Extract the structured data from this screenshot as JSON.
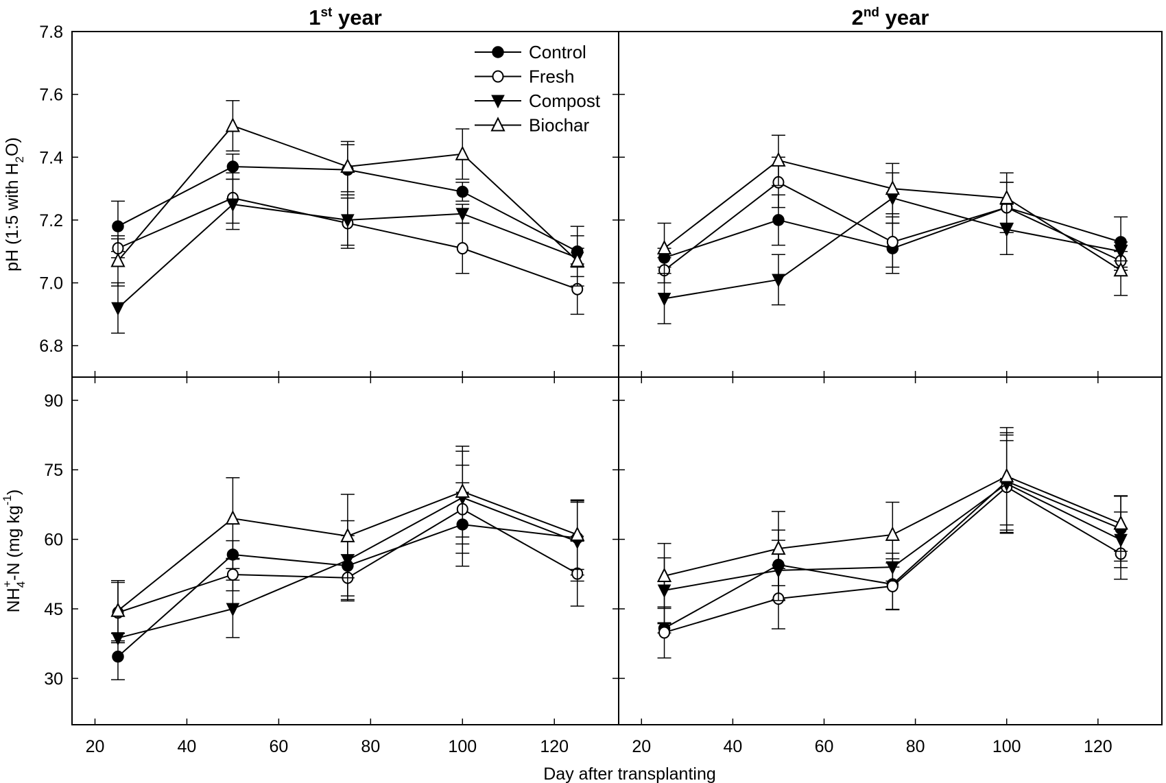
{
  "chart_data": {
    "type": "line",
    "legend": {
      "placement": "top-right of top-left panel",
      "entries": [
        "Control",
        "Fresh",
        "Compost",
        "Biochar"
      ]
    },
    "series_markers": {
      "Control": "filled-circle",
      "Fresh": "open-circle",
      "Compost": "filled-triangle-down",
      "Biochar": "open-triangle-up"
    },
    "xlabel": "Day after transplanting",
    "x": [
      25,
      50,
      75,
      100,
      125
    ],
    "xlim": [
      15,
      134
    ],
    "xticks": [
      20,
      40,
      60,
      80,
      100,
      120
    ],
    "grid": false,
    "column_titles": [
      {
        "main": "1",
        "sup": "st",
        "rest": " year"
      },
      {
        "main": "2",
        "sup": "nd",
        "rest": " year"
      }
    ],
    "rows": [
      {
        "ylabel": {
          "pre": "pH (1:5 with H",
          "sub": "2",
          "post": "O)"
        },
        "ylim": [
          6.7,
          7.8
        ],
        "yticks": [
          "6.8",
          "7.0",
          "7.2",
          "7.4",
          "7.6",
          "7.8"
        ],
        "panels": [
          {
            "column": "1st year",
            "series": [
              {
                "name": "Control",
                "values": [
                  7.18,
                  7.37,
                  7.36,
                  7.29,
                  7.1
                ],
                "err": [
                  0.08,
                  0.04,
                  0.08,
                  0.03,
                  0.08
                ]
              },
              {
                "name": "Fresh",
                "values": [
                  7.11,
                  7.27,
                  7.19,
                  7.11,
                  6.98
                ],
                "err": [
                  0.03,
                  0.08,
                  0.08,
                  0.08,
                  0.08
                ]
              },
              {
                "name": "Compost",
                "values": [
                  6.92,
                  7.25,
                  7.2,
                  7.22,
                  7.08
                ],
                "err": [
                  0.08,
                  0.08,
                  0.08,
                  0.03,
                  0.03
                ]
              },
              {
                "name": "Biochar",
                "values": [
                  7.07,
                  7.5,
                  7.37,
                  7.41,
                  7.07
                ],
                "err": [
                  0.08,
                  0.08,
                  0.08,
                  0.08,
                  0.08
                ]
              }
            ]
          },
          {
            "column": "2nd year",
            "series": [
              {
                "name": "Control",
                "values": [
                  7.08,
                  7.2,
                  7.11,
                  7.24,
                  7.13
                ],
                "err": [
                  0.03,
                  0.08,
                  0.08,
                  0.08,
                  0.08
                ]
              },
              {
                "name": "Fresh",
                "values": [
                  7.04,
                  7.32,
                  7.13,
                  7.24,
                  7.07
                ],
                "err": [
                  0.04,
                  0.08,
                  0.08,
                  0.08,
                  0.03
                ]
              },
              {
                "name": "Compost",
                "values": [
                  6.95,
                  7.01,
                  7.27,
                  7.17,
                  7.1
                ],
                "err": [
                  0.08,
                  0.08,
                  0.08,
                  0.08,
                  0.03
                ]
              },
              {
                "name": "Biochar",
                "values": [
                  7.11,
                  7.39,
                  7.3,
                  7.27,
                  7.04
                ],
                "err": [
                  0.08,
                  0.08,
                  0.08,
                  0.08,
                  0.08
                ]
              }
            ]
          }
        ]
      },
      {
        "ylabel": {
          "pre": "NH",
          "sub": "4",
          "sup": "+",
          "mid": "-N (mg kg",
          "sup2": "-1",
          "post": ")"
        },
        "ylim": [
          20,
          95
        ],
        "yticks": [
          "30",
          "45",
          "60",
          "75",
          "90"
        ],
        "panels": [
          {
            "column": "1st year",
            "series": [
              {
                "name": "Control",
                "values": [
                  34.7,
                  56.7,
                  54.3,
                  63.2,
                  60.3
                ],
                "err": [
                  5.0,
                  3.0,
                  6.5,
                  9.0,
                  8.0
                ]
              },
              {
                "name": "Fresh",
                "values": [
                  44.2,
                  52.4,
                  51.7,
                  66.5,
                  52.6
                ],
                "err": [
                  6.5,
                  3.5,
                  5.0,
                  9.5,
                  7.0
                ]
              },
              {
                "name": "Compost",
                "values": [
                  38.7,
                  45.0,
                  55.5,
                  69.0,
                  59.5
                ],
                "err": [
                  1.0,
                  6.2,
                  8.5,
                  10.0,
                  8.5
                ]
              },
              {
                "name": "Biochar",
                "values": [
                  44.6,
                  64.5,
                  60.7,
                  70.3,
                  61.0
                ],
                "err": [
                  6.5,
                  8.8,
                  9.0,
                  9.8,
                  7.5
                ]
              }
            ]
          },
          {
            "column": "2nd year",
            "series": [
              {
                "name": "Control",
                "values": [
                  40.8,
                  54.5,
                  50.3,
                  72.5,
                  62.3
                ],
                "err": [
                  1.0,
                  7.5,
                  5.5,
                  10.5,
                  7.0
                ]
              },
              {
                "name": "Fresh",
                "values": [
                  39.9,
                  47.2,
                  49.9,
                  71.3,
                  56.9
                ],
                "err": [
                  5.5,
                  6.5,
                  5.0,
                  10.0,
                  5.5
                ]
              },
              {
                "name": "Compost",
                "values": [
                  49.0,
                  53.3,
                  54.0,
                  72.0,
                  59.9
                ],
                "err": [
                  7.0,
                  6.5,
                  3.0,
                  10.5,
                  6.0
                ]
              },
              {
                "name": "Biochar",
                "values": [
                  52.1,
                  58.0,
                  61.0,
                  73.6,
                  63.4
                ],
                "err": [
                  7.0,
                  8.0,
                  7.0,
                  10.5,
                  6.0
                ]
              }
            ]
          }
        ]
      }
    ]
  }
}
